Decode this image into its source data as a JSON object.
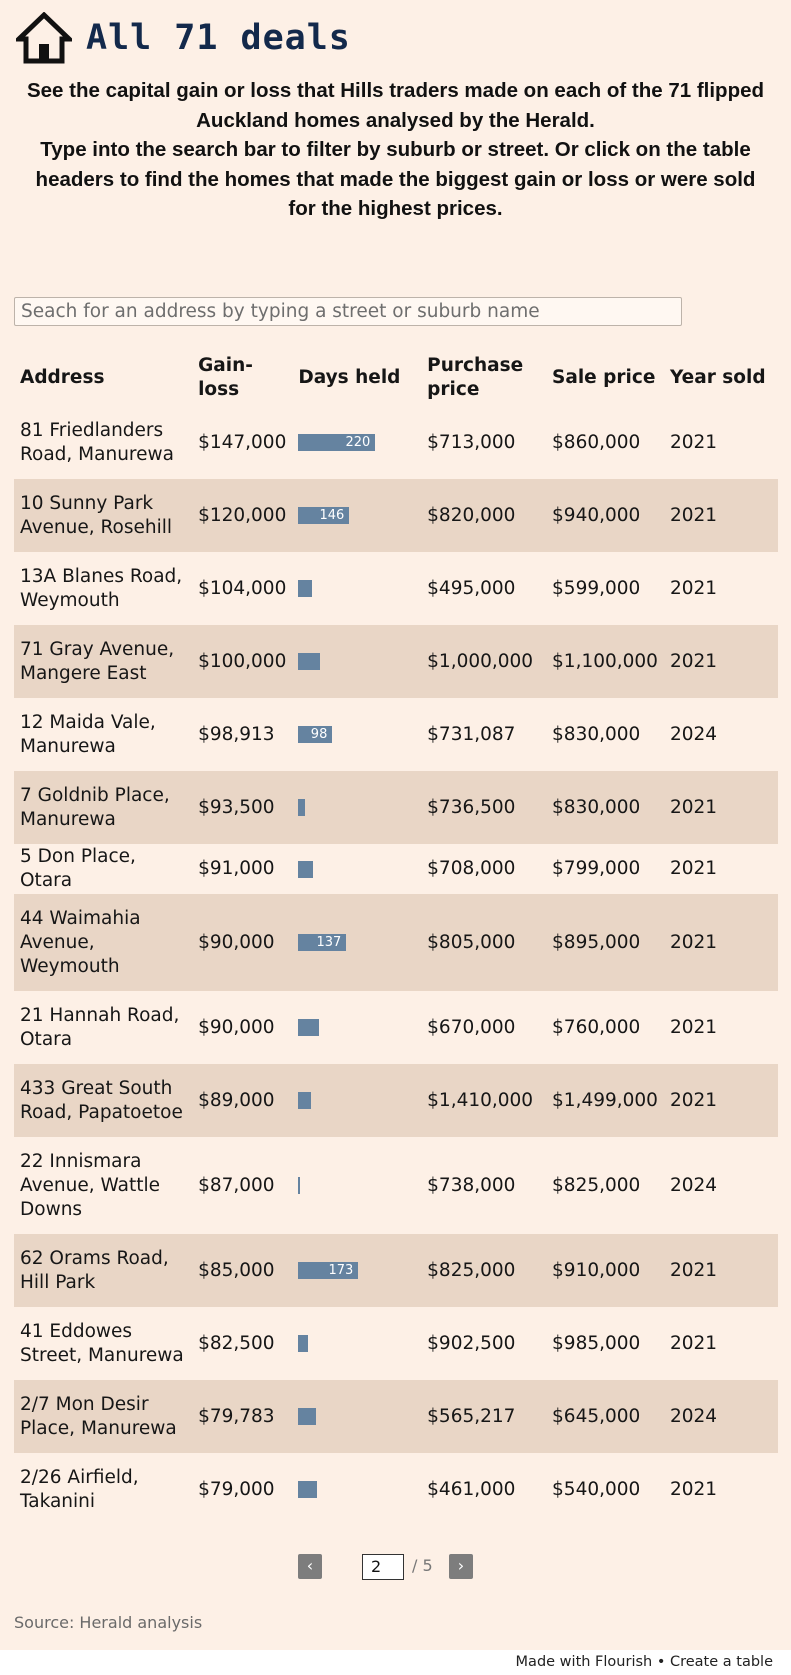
{
  "header": {
    "title": "All 71 deals"
  },
  "intro": {
    "line1": "See the capital gain or loss that Hills traders made on each of the 71 flipped Auckland homes analysed by the Herald.",
    "line2": "Type into the search bar to filter by suburb or street. Or click on the table headers to find the homes that made the biggest gain or loss or were sold for the highest prices."
  },
  "search": {
    "placeholder": "Seach for an address by typing a street or suburb name"
  },
  "table": {
    "days_held_max": 230,
    "bar_color": "#6583a0",
    "columns": [
      "Address",
      "Gain-loss",
      "Days held",
      "Purchase price",
      "Sale price",
      "Year sold"
    ],
    "rows": [
      {
        "address": "81 Friedlanders Road, Manurewa",
        "gain": "$147,000",
        "days": 220,
        "days_label": "220",
        "purchase": "$713,000",
        "sale": "$860,000",
        "year": "2021"
      },
      {
        "address": "10 Sunny Park Avenue, Rosehill",
        "gain": "$120,000",
        "days": 146,
        "days_label": "146",
        "purchase": "$820,000",
        "sale": "$940,000",
        "year": "2021"
      },
      {
        "address": "13A Blanes Road, Weymouth",
        "gain": "$104,000",
        "days": 41,
        "days_label": "",
        "purchase": "$495,000",
        "sale": "$599,000",
        "year": "2021"
      },
      {
        "address": "71 Gray Avenue, Mangere East",
        "gain": "$100,000",
        "days": 62,
        "days_label": "",
        "purchase": "$1,000,000",
        "sale": "$1,100,000",
        "year": "2021"
      },
      {
        "address": "12 Maida Vale, Manurewa",
        "gain": "$98,913",
        "days": 98,
        "days_label": "98",
        "purchase": "$731,087",
        "sale": "$830,000",
        "year": "2024"
      },
      {
        "address": "7 Goldnib Place, Manurewa",
        "gain": "$93,500",
        "days": 20,
        "days_label": "",
        "purchase": "$736,500",
        "sale": "$830,000",
        "year": "2021"
      },
      {
        "address": "5 Don Place, Otara",
        "gain": "$91,000",
        "days": 42,
        "days_label": "",
        "purchase": "$708,000",
        "sale": "$799,000",
        "year": "2021"
      },
      {
        "address": "44 Waimahia Avenue, Weymouth",
        "gain": "$90,000",
        "days": 137,
        "days_label": "137",
        "purchase": "$805,000",
        "sale": "$895,000",
        "year": "2021"
      },
      {
        "address": "21 Hannah Road, Otara",
        "gain": "$90,000",
        "days": 60,
        "days_label": "",
        "purchase": "$670,000",
        "sale": "$760,000",
        "year": "2021"
      },
      {
        "address": "433 Great South Road, Papatoetoe",
        "gain": "$89,000",
        "days": 38,
        "days_label": "",
        "purchase": "$1,410,000",
        "sale": "$1,499,000",
        "year": "2021"
      },
      {
        "address": "22 Innismara Avenue, Wattle Downs",
        "gain": "$87,000",
        "days": 3,
        "days_label": "",
        "purchase": "$738,000",
        "sale": "$825,000",
        "year": "2024"
      },
      {
        "address": "62 Orams Road, Hill Park",
        "gain": "$85,000",
        "days": 173,
        "days_label": "173",
        "purchase": "$825,000",
        "sale": "$910,000",
        "year": "2021"
      },
      {
        "address": "41 Eddowes Street, Manurewa",
        "gain": "$82,500",
        "days": 30,
        "days_label": "",
        "purchase": "$902,500",
        "sale": "$985,000",
        "year": "2021"
      },
      {
        "address": "2/7 Mon Desir Place, Manurewa",
        "gain": "$79,783",
        "days": 52,
        "days_label": "",
        "purchase": "$565,217",
        "sale": "$645,000",
        "year": "2024"
      },
      {
        "address": "2/26 Airfield, Takanini",
        "gain": "$79,000",
        "days": 56,
        "days_label": "",
        "purchase": "$461,000",
        "sale": "$540,000",
        "year": "2021"
      }
    ]
  },
  "pagination": {
    "prev": "‹",
    "next": "›",
    "page": "2",
    "total": "/ 5"
  },
  "source": "Source: Herald analysis",
  "footer": "Made with Flourish • Create a table"
}
